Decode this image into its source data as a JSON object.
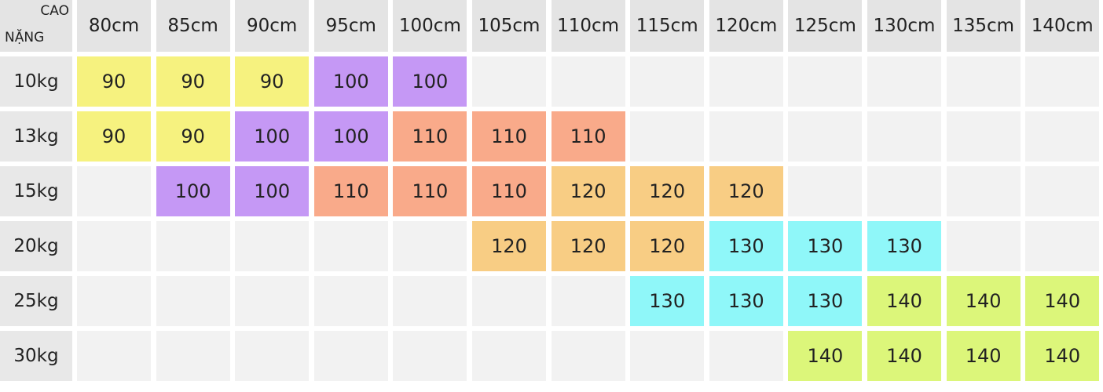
{
  "table": {
    "corner": {
      "top": "CAO",
      "bottom": "NẶNG"
    },
    "columns": [
      "80cm",
      "85cm",
      "90cm",
      "95cm",
      "100cm",
      "105cm",
      "110cm",
      "115cm",
      "120cm",
      "125cm",
      "130cm",
      "135cm",
      "140cm"
    ],
    "rows": [
      {
        "label": "10kg",
        "cells": [
          90,
          90,
          90,
          100,
          100,
          null,
          null,
          null,
          null,
          null,
          null,
          null,
          null
        ]
      },
      {
        "label": "13kg",
        "cells": [
          90,
          90,
          100,
          100,
          110,
          110,
          110,
          null,
          null,
          null,
          null,
          null,
          null
        ]
      },
      {
        "label": "15kg",
        "cells": [
          null,
          100,
          100,
          110,
          110,
          110,
          120,
          120,
          120,
          null,
          null,
          null,
          null
        ]
      },
      {
        "label": "20kg",
        "cells": [
          null,
          null,
          null,
          null,
          null,
          120,
          120,
          120,
          130,
          130,
          130,
          null,
          null
        ]
      },
      {
        "label": "25kg",
        "cells": [
          null,
          null,
          null,
          null,
          null,
          null,
          null,
          130,
          130,
          130,
          140,
          140,
          140
        ]
      },
      {
        "label": "30kg",
        "cells": [
          null,
          null,
          null,
          null,
          null,
          null,
          null,
          null,
          null,
          140,
          140,
          140,
          140
        ]
      }
    ],
    "cell_colors": {
      "90": "#f6f27f",
      "100": "#c598f5",
      "110": "#f9aa8a",
      "120": "#f8cd84",
      "130": "#8ff7f9",
      "140": "#dcf67a"
    }
  }
}
